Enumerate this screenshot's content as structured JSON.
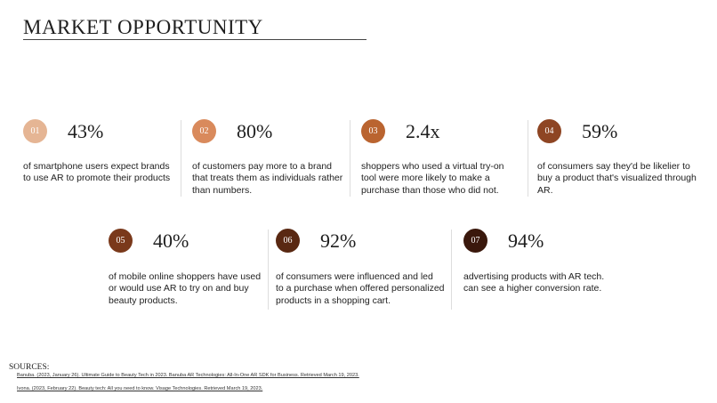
{
  "title": "MARKET OPPORTUNITY",
  "stats": [
    {
      "index": "01",
      "figure": "43%",
      "description": [
        "of smartphone users expect brands",
        "to use AR to promote their products"
      ]
    },
    {
      "index": "02",
      "figure": "80%",
      "description": [
        "of customers pay more to a brand",
        "that treats them as individuals rather",
        "than numbers."
      ]
    },
    {
      "index": "03",
      "figure": "2.4x",
      "description": [
        "shoppers who used a virtual try-on",
        "tool were more likely to make a",
        "purchase than those who did not."
      ]
    },
    {
      "index": "04",
      "figure": "59%",
      "description": [
        "of consumers say they'd be likelier to",
        "buy a product that's visualized through",
        "AR."
      ]
    },
    {
      "index": "05",
      "figure": "40%",
      "description": [
        "of mobile online shoppers have used",
        "or would use AR to try on and buy",
        "beauty products."
      ]
    },
    {
      "index": "06",
      "figure": "92%",
      "description": [
        "of consumers were influenced and led",
        "to a purchase when offered personalized",
        "products in a shopping cart."
      ]
    },
    {
      "index": "07",
      "figure": "94%",
      "description": [
        "advertising products with AR tech.",
        "can see a higher conversion rate."
      ]
    }
  ],
  "sources": {
    "heading": "SOURCES:",
    "items": [
      "Banuba. (2023, January 26). Ultimate Guide to Beauty Tech in 2023. Banuba AR Technologies: All-In-One AR SDK for Business. Retrieved March 19, 2023.",
      "Ivona. (2023, February 22). Beauty tech: All you need to know. Visage Technologies. Retrieved March 19, 2023."
    ]
  }
}
